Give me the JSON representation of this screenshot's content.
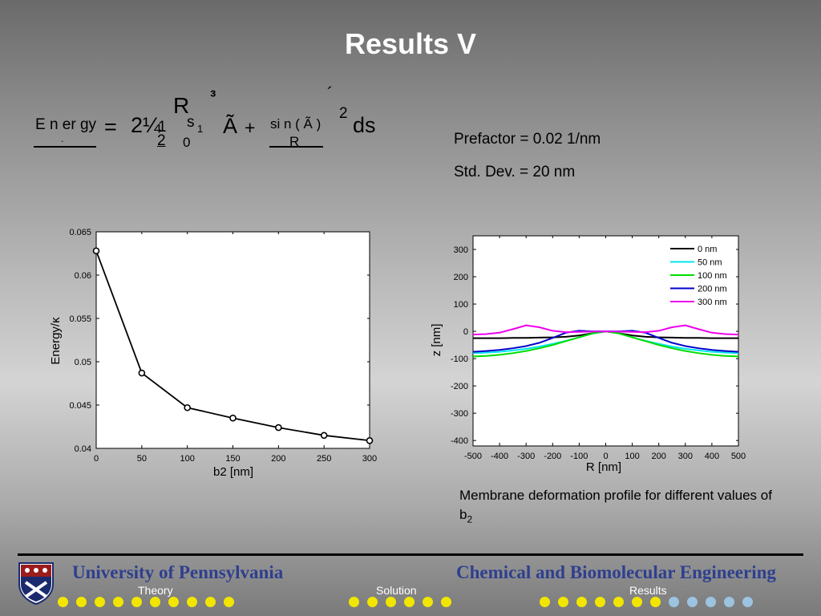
{
  "slide": {
    "title": "Results V"
  },
  "equation": {
    "lhs_top": "E n er gy",
    "lhs_bottom": ".",
    "equals": "=",
    "coef": "2¼",
    "one": "1",
    "two": "2",
    "integral_R": "R",
    "s_one": "s",
    "sub_one": "1",
    "zero": "0",
    "cube": "³",
    "tilde_a": "Ã",
    "plus": "+",
    "sin_top": "si n ( Ã )",
    "R_bottom": "R",
    "acute": "´",
    "sq": "2",
    "ds": "ds"
  },
  "notes": {
    "prefactor": "Prefactor = 0.02 1/nm",
    "std_dev": "Std. Dev. = 20 nm"
  },
  "chart_data": [
    {
      "type": "line",
      "xlabel": "b2 [nm]",
      "ylabel": "Energy/κ",
      "x": [
        0,
        50,
        100,
        150,
        200,
        250,
        300
      ],
      "y": [
        0.0628,
        0.0487,
        0.0447,
        0.0435,
        0.0424,
        0.0415,
        0.0409
      ],
      "xlim": [
        0,
        300
      ],
      "ylim": [
        0.04,
        0.065
      ],
      "xticks": [
        "0",
        "50",
        "100",
        "150",
        "200",
        "250",
        "300"
      ],
      "yticks": [
        "0.04",
        "0.045",
        "0.05",
        "0.055",
        "0.06",
        "0.065"
      ],
      "marker": "circle",
      "color": "#000000"
    },
    {
      "type": "line",
      "xlabel": "R [nm]",
      "ylabel": "z [nm]",
      "xlim": [
        -500,
        500
      ],
      "ylim": [
        -420,
        350
      ],
      "xticks": [
        "-500",
        "-400",
        "-300",
        "-200",
        "-100",
        "0",
        "100",
        "200",
        "300",
        "400",
        "500"
      ],
      "yticks": [
        "-400",
        "-300",
        "-200",
        "-100",
        "0",
        "100",
        "200",
        "300"
      ],
      "legend_position": "top-right",
      "x": [
        -500,
        -450,
        -400,
        -350,
        -300,
        -250,
        -200,
        -150,
        -100,
        -50,
        0,
        50,
        100,
        150,
        200,
        250,
        300,
        350,
        400,
        450,
        500
      ],
      "series": [
        {
          "name": "0 nm",
          "color": "#000000",
          "values": [
            -25,
            -25,
            -25,
            -24,
            -24,
            -23,
            -22,
            -20,
            -15,
            -7,
            0,
            -7,
            -15,
            -20,
            -22,
            -23,
            -24,
            -24,
            -25,
            -25,
            -25
          ]
        },
        {
          "name": "50 nm",
          "color": "#00e5ee",
          "values": [
            -80,
            -78,
            -75,
            -70,
            -64,
            -56,
            -46,
            -35,
            -22,
            -8,
            0,
            -8,
            -22,
            -35,
            -46,
            -56,
            -64,
            -70,
            -75,
            -78,
            -80
          ]
        },
        {
          "name": "100 nm",
          "color": "#00dd00",
          "values": [
            -92,
            -90,
            -86,
            -80,
            -72,
            -62,
            -50,
            -36,
            -22,
            -8,
            0,
            -8,
            -22,
            -36,
            -50,
            -62,
            -72,
            -80,
            -86,
            -90,
            -92
          ]
        },
        {
          "name": "200 nm",
          "color": "#0000cc",
          "values": [
            -75,
            -72,
            -68,
            -62,
            -54,
            -42,
            -24,
            -5,
            2,
            0,
            0,
            0,
            2,
            -5,
            -24,
            -42,
            -54,
            -62,
            -68,
            -72,
            -75
          ]
        },
        {
          "name": "300 nm",
          "color": "#ee00ee",
          "values": [
            -12,
            -10,
            -5,
            8,
            22,
            15,
            2,
            -3,
            -2,
            -1,
            0,
            -1,
            -2,
            -3,
            2,
            15,
            22,
            8,
            -5,
            -10,
            -12
          ]
        }
      ]
    }
  ],
  "caption": {
    "text": "Membrane deformation profile for different values of b",
    "subscript": "2"
  },
  "footer": {
    "university": "University of Pennsylvania",
    "department": "Chemical and Biomolecular Engineering",
    "sections": [
      "Theory",
      "Solution",
      "Results"
    ],
    "dot_groups": [
      10,
      6,
      12
    ],
    "dot_active": [
      10,
      6,
      7
    ],
    "active_color": "#f2e600",
    "inactive_color": "#9cc4e0",
    "text_color": "#2f3f8f"
  }
}
